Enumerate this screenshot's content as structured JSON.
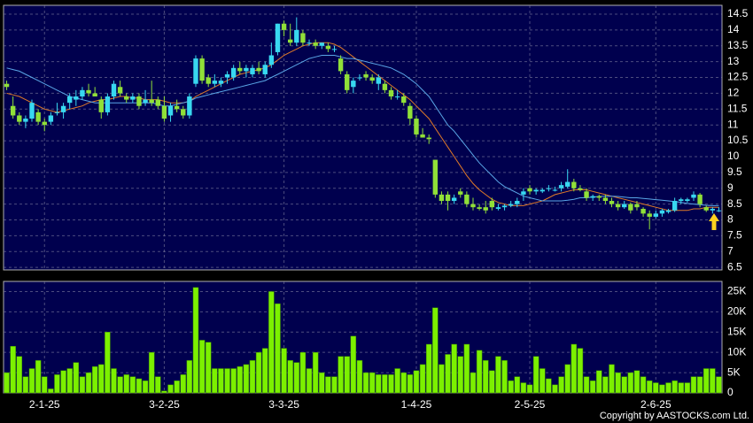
{
  "chart_data": {
    "type": "candlestick",
    "categories": [
      null,
      null,
      null,
      null,
      null,
      null,
      "2-1-25",
      null,
      null,
      null,
      null,
      null,
      null,
      null,
      null,
      null,
      null,
      null,
      null,
      null,
      null,
      null,
      null,
      null,
      null,
      "3-2-25",
      null,
      null,
      null,
      null,
      null,
      null,
      null,
      null,
      null,
      null,
      null,
      null,
      null,
      null,
      null,
      null,
      null,
      null,
      "3-3-25",
      null,
      null,
      null,
      null,
      null,
      null,
      null,
      null,
      null,
      null,
      null,
      null,
      null,
      null,
      null,
      null,
      null,
      null,
      null,
      null,
      "1-4-25",
      null,
      null,
      null,
      null,
      null,
      null,
      null,
      null,
      null,
      null,
      null,
      null,
      null,
      null,
      null,
      null,
      null,
      "2-5-25",
      null,
      null,
      null,
      null,
      null,
      null,
      null,
      null,
      null,
      null,
      null,
      null,
      null,
      null,
      null,
      null,
      null,
      null,
      null,
      "2-6-25",
      null,
      null,
      null,
      null,
      null,
      null,
      null,
      null,
      null,
      null
    ],
    "candles": [
      [
        12.3,
        12.4,
        12.1,
        12.2
      ],
      [
        11.6,
        11.9,
        11.2,
        11.3
      ],
      [
        11.3,
        11.4,
        11.0,
        11.1
      ],
      [
        11.1,
        11.3,
        10.9,
        11.2
      ],
      [
        11.2,
        11.8,
        11.1,
        11.7
      ],
      [
        11.4,
        11.5,
        11.0,
        11.1
      ],
      [
        11.1,
        11.2,
        10.8,
        11.0
      ],
      [
        11.1,
        11.4,
        11.0,
        11.3
      ],
      [
        11.4,
        11.7,
        11.3,
        11.4
      ],
      [
        11.4,
        11.7,
        11.2,
        11.6
      ],
      [
        11.7,
        12.0,
        11.5,
        11.9
      ],
      [
        11.8,
        12.1,
        11.6,
        11.9
      ],
      [
        11.9,
        12.2,
        11.8,
        12.1
      ],
      [
        12.1,
        12.3,
        11.9,
        12.0
      ],
      [
        12.0,
        12.2,
        11.9,
        11.9
      ],
      [
        11.8,
        11.9,
        11.2,
        11.4
      ],
      [
        11.4,
        12.0,
        11.3,
        11.9
      ],
      [
        11.9,
        12.4,
        11.8,
        12.3
      ],
      [
        12.2,
        12.4,
        11.9,
        12.0
      ],
      [
        11.9,
        12.0,
        11.7,
        11.8
      ],
      [
        11.8,
        12.0,
        11.7,
        11.9
      ],
      [
        11.9,
        12.0,
        11.5,
        11.6
      ],
      [
        11.7,
        12.1,
        11.6,
        11.8
      ],
      [
        11.8,
        12.4,
        11.6,
        11.7
      ],
      [
        11.8,
        11.9,
        11.5,
        11.6
      ],
      [
        11.6,
        11.9,
        11.1,
        11.2
      ],
      [
        11.3,
        11.7,
        11.1,
        11.6
      ],
      [
        11.6,
        11.8,
        11.4,
        11.5
      ],
      [
        11.5,
        11.6,
        11.2,
        11.3
      ],
      [
        11.3,
        12.0,
        11.2,
        11.9
      ],
      [
        12.3,
        13.2,
        12.2,
        13.1
      ],
      [
        13.1,
        13.2,
        12.3,
        12.4
      ],
      [
        12.5,
        12.6,
        12.2,
        12.3
      ],
      [
        12.3,
        12.6,
        12.2,
        12.4
      ],
      [
        12.3,
        12.5,
        12.2,
        12.4
      ],
      [
        12.5,
        12.7,
        12.3,
        12.6
      ],
      [
        12.5,
        12.9,
        12.4,
        12.8
      ],
      [
        12.8,
        13.0,
        12.6,
        12.7
      ],
      [
        12.7,
        12.9,
        12.5,
        12.8
      ],
      [
        12.6,
        12.9,
        12.5,
        12.8
      ],
      [
        12.8,
        13.0,
        12.6,
        12.7
      ],
      [
        12.6,
        13.0,
        12.5,
        12.9
      ],
      [
        12.9,
        13.6,
        12.8,
        13.2
      ],
      [
        13.3,
        14.2,
        13.2,
        14.2
      ],
      [
        14.2,
        14.3,
        13.8,
        14.0
      ],
      [
        13.7,
        14.2,
        13.5,
        13.6
      ],
      [
        13.6,
        14.4,
        13.5,
        14.0
      ],
      [
        13.9,
        14.0,
        13.5,
        13.6
      ],
      [
        13.6,
        13.7,
        13.5,
        13.6
      ],
      [
        13.6,
        13.7,
        13.4,
        13.5
      ],
      [
        13.5,
        13.6,
        13.4,
        13.6
      ],
      [
        13.5,
        13.6,
        13.3,
        13.4
      ],
      [
        13.4,
        13.5,
        13.3,
        13.4
      ],
      [
        13.1,
        13.2,
        12.6,
        12.7
      ],
      [
        12.6,
        12.7,
        12.0,
        12.1
      ],
      [
        12.2,
        12.5,
        12.0,
        12.4
      ],
      [
        12.5,
        12.6,
        12.4,
        12.5
      ],
      [
        12.6,
        12.7,
        12.4,
        12.5
      ],
      [
        12.5,
        12.6,
        12.3,
        12.4
      ],
      [
        12.3,
        12.6,
        12.1,
        12.5
      ],
      [
        12.3,
        12.4,
        12.0,
        12.1
      ],
      [
        12.1,
        12.2,
        11.8,
        11.9
      ],
      [
        11.9,
        12.1,
        11.8,
        11.9
      ],
      [
        11.9,
        12.0,
        11.6,
        11.7
      ],
      [
        11.6,
        11.7,
        11.0,
        11.2
      ],
      [
        11.2,
        11.3,
        10.6,
        10.7
      ],
      [
        10.7,
        10.9,
        10.6,
        10.6
      ],
      [
        10.6,
        10.7,
        10.4,
        10.55
      ],
      [
        9.9,
        9.9,
        8.7,
        8.8
      ],
      [
        8.8,
        8.9,
        8.5,
        8.6
      ],
      [
        8.8,
        8.9,
        8.3,
        8.6
      ],
      [
        8.6,
        8.8,
        8.5,
        8.7
      ],
      [
        8.9,
        9.0,
        8.7,
        8.8
      ],
      [
        8.8,
        8.9,
        8.4,
        8.5
      ],
      [
        8.5,
        8.7,
        8.3,
        8.4
      ],
      [
        8.4,
        8.5,
        8.3,
        8.35
      ],
      [
        8.4,
        8.6,
        8.2,
        8.3
      ],
      [
        8.6,
        8.7,
        8.3,
        8.4
      ],
      [
        8.35,
        8.5,
        8.3,
        8.4
      ],
      [
        8.4,
        8.5,
        8.3,
        8.45
      ],
      [
        8.45,
        8.6,
        8.4,
        8.5
      ],
      [
        8.5,
        8.7,
        8.4,
        8.6
      ],
      [
        8.8,
        9.0,
        8.6,
        8.9
      ],
      [
        9.0,
        9.1,
        8.8,
        8.9
      ],
      [
        8.9,
        9.0,
        8.8,
        8.95
      ],
      [
        8.9,
        9.0,
        8.85,
        8.95
      ],
      [
        9.0,
        9.1,
        8.9,
        9.0
      ],
      [
        8.95,
        9.05,
        8.9,
        8.95
      ],
      [
        9.0,
        9.2,
        8.9,
        9.1
      ],
      [
        9.05,
        9.6,
        9.0,
        9.2
      ],
      [
        9.2,
        9.3,
        8.9,
        9.0
      ],
      [
        9.0,
        9.1,
        8.9,
        8.95
      ],
      [
        8.9,
        9.0,
        8.6,
        8.7
      ],
      [
        8.7,
        8.8,
        8.6,
        8.75
      ],
      [
        8.75,
        8.8,
        8.6,
        8.7
      ],
      [
        8.7,
        8.8,
        8.5,
        8.6
      ],
      [
        8.6,
        8.7,
        8.4,
        8.5
      ],
      [
        8.5,
        8.6,
        8.3,
        8.4
      ],
      [
        8.4,
        8.6,
        8.35,
        8.5
      ],
      [
        8.5,
        8.55,
        8.2,
        8.3
      ],
      [
        8.5,
        8.6,
        8.3,
        8.4
      ],
      [
        8.35,
        8.4,
        8.1,
        8.2
      ],
      [
        8.2,
        8.3,
        7.7,
        8.1
      ],
      [
        8.1,
        8.3,
        8.05,
        8.2
      ],
      [
        8.2,
        8.35,
        8.1,
        8.3
      ],
      [
        8.25,
        8.35,
        8.2,
        8.3
      ],
      [
        8.3,
        8.7,
        8.25,
        8.6
      ],
      [
        8.6,
        8.7,
        8.5,
        8.65
      ],
      [
        8.6,
        8.7,
        8.55,
        8.65
      ],
      [
        8.7,
        8.9,
        8.6,
        8.8
      ],
      [
        8.8,
        8.85,
        8.4,
        8.5
      ],
      [
        8.4,
        8.45,
        8.25,
        8.3
      ],
      [
        8.3,
        8.4,
        8.2,
        8.35
      ],
      [
        8.3,
        8.4,
        8.25,
        8.3
      ]
    ],
    "up_color": "#38d8f0",
    "down_color": "#90e038",
    "moving_averages": [
      {
        "color": "#e07a28",
        "values": [
          12.0,
          11.95,
          11.9,
          11.8,
          11.7,
          11.6,
          11.5,
          11.45,
          11.4,
          11.45,
          11.5,
          11.55,
          11.6,
          11.7,
          11.75,
          11.8,
          11.8,
          11.85,
          11.9,
          11.9,
          11.85,
          11.85,
          11.8,
          11.8,
          11.8,
          11.75,
          11.7,
          11.7,
          11.7,
          11.75,
          11.9,
          12.0,
          12.1,
          12.2,
          12.3,
          12.4,
          12.5,
          12.6,
          12.65,
          12.7,
          12.75,
          12.8,
          12.9,
          13.05,
          13.2,
          13.3,
          13.4,
          13.5,
          13.55,
          13.6,
          13.6,
          13.6,
          13.55,
          13.45,
          13.3,
          13.15,
          13.0,
          12.85,
          12.7,
          12.55,
          12.4,
          12.25,
          12.1,
          11.95,
          11.8,
          11.6,
          11.4,
          11.2,
          10.9,
          10.6,
          10.3,
          10.0,
          9.7,
          9.4,
          9.15,
          8.95,
          8.8,
          8.65,
          8.55,
          8.5,
          8.45,
          8.45,
          8.45,
          8.5,
          8.55,
          8.6,
          8.7,
          8.8,
          8.85,
          8.9,
          8.95,
          8.95,
          8.95,
          8.9,
          8.85,
          8.8,
          8.75,
          8.7,
          8.65,
          8.6,
          8.55,
          8.5,
          8.45,
          8.4,
          8.35,
          8.3,
          8.3,
          8.3,
          8.3,
          8.35,
          8.35,
          8.4,
          8.4,
          8.4
        ]
      },
      {
        "color": "#5aa6e6",
        "values": [
          12.8,
          12.75,
          12.7,
          12.6,
          12.5,
          12.4,
          12.3,
          12.2,
          12.1,
          12.0,
          11.9,
          11.85,
          11.8,
          11.75,
          11.7,
          11.7,
          11.7,
          11.7,
          11.7,
          11.7,
          11.7,
          11.7,
          11.7,
          11.7,
          11.65,
          11.6,
          11.6,
          11.65,
          11.7,
          11.75,
          11.85,
          11.9,
          11.95,
          12.0,
          12.05,
          12.1,
          12.15,
          12.2,
          12.25,
          12.3,
          12.35,
          12.4,
          12.5,
          12.6,
          12.7,
          12.8,
          12.9,
          13.0,
          13.1,
          13.15,
          13.2,
          13.2,
          13.2,
          13.15,
          13.1,
          13.1,
          13.05,
          13.0,
          12.95,
          12.9,
          12.85,
          12.8,
          12.7,
          12.6,
          12.45,
          12.3,
          12.1,
          11.9,
          11.6,
          11.3,
          11.0,
          10.8,
          10.55,
          10.3,
          10.05,
          9.8,
          9.6,
          9.4,
          9.2,
          9.05,
          8.95,
          8.85,
          8.75,
          8.7,
          8.65,
          8.6,
          8.6,
          8.6,
          8.6,
          8.62,
          8.65,
          8.7,
          8.7,
          8.72,
          8.74,
          8.75,
          8.75,
          8.74,
          8.72,
          8.7,
          8.7,
          8.68,
          8.66,
          8.64,
          8.62,
          8.6,
          8.58,
          8.55,
          8.52,
          8.5,
          8.48,
          8.46,
          8.45,
          8.45
        ]
      }
    ],
    "ylim": [
      6.42,
      14.78
    ],
    "yticks": [
      14.5,
      14,
      13.5,
      13,
      12.5,
      12,
      11.5,
      11,
      10.5,
      10,
      9.5,
      9,
      8.5,
      8,
      7.5,
      7,
      6.5
    ],
    "volume": {
      "color": "#7cf000",
      "values": [
        5000,
        11500,
        9000,
        4000,
        6000,
        8000,
        4000,
        1000,
        4500,
        5500,
        6000,
        7500,
        4000,
        5000,
        6500,
        7000,
        15000,
        6000,
        4000,
        4500,
        4000,
        3500,
        3000,
        10000,
        4000,
        500,
        2000,
        3000,
        4500,
        8000,
        26000,
        13000,
        12500,
        6000,
        6000,
        6000,
        6000,
        6500,
        7000,
        8000,
        10000,
        11000,
        25000,
        22000,
        11000,
        8000,
        7500,
        10000,
        6000,
        10000,
        5000,
        4000,
        4000,
        9000,
        9000,
        14000,
        8000,
        5000,
        5000,
        4500,
        4500,
        4500,
        6000,
        5000,
        4500,
        5500,
        7000,
        12000,
        21000,
        7000,
        9500,
        12000,
        9000,
        12000,
        5000,
        10500,
        8000,
        5500,
        9000,
        8000,
        3000,
        4000,
        2500,
        2000,
        9000,
        6000,
        3500,
        2000,
        4000,
        7000,
        12000,
        11000,
        4000,
        3000,
        5500,
        4000,
        7000,
        5000,
        4000,
        5000,
        5500,
        4000,
        3000,
        2500,
        2000,
        2500,
        3000,
        2500,
        2500,
        4000,
        4000,
        6000,
        6000,
        4000
      ],
      "ylim": [
        0,
        27500
      ],
      "yticks": [
        {
          "value": 25000,
          "label": "25K"
        },
        {
          "value": 20000,
          "label": "20K"
        },
        {
          "value": 15000,
          "label": "15K"
        },
        {
          "value": 10000,
          "label": "10K"
        },
        {
          "value": 5000,
          "label": "5K"
        },
        0
      ]
    },
    "grid": true,
    "copyright": "Copyright by AASTOCKS.com Ltd."
  }
}
